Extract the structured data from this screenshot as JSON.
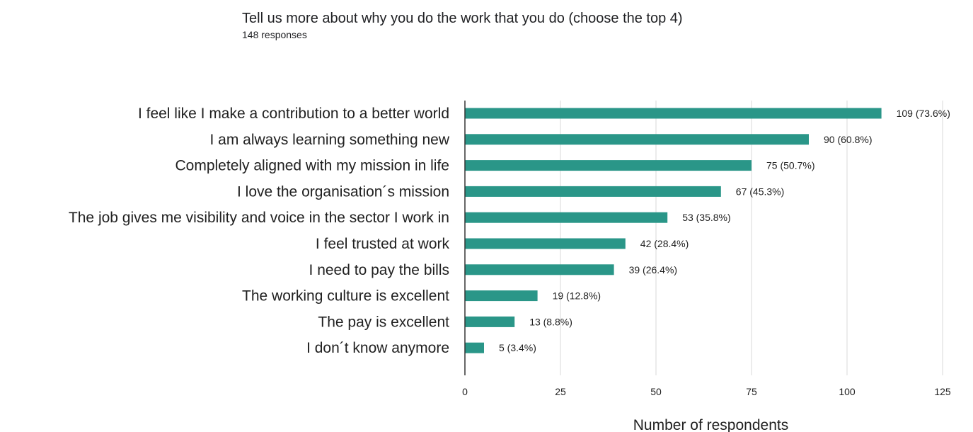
{
  "header": {
    "title": "Tell us more about why you do the work that you do (choose the top 4)",
    "responses": "148 responses"
  },
  "colors": {
    "bar": "#2a9688",
    "grid": "#d9d9d9",
    "axis": "#333333"
  },
  "chart_data": {
    "type": "bar",
    "orientation": "horizontal",
    "categories": [
      "I feel like I make a contribution to a better world",
      "I am always learning something new",
      "Completely aligned with my mission in life",
      "I love the organisation´s mission",
      "The job gives me visibility and voice in the sector I work in",
      "I feel trusted at work",
      "I need to pay the bills",
      "The working culture is excellent",
      "The pay is excellent",
      "I don´t know anymore"
    ],
    "values": [
      109,
      90,
      75,
      67,
      53,
      42,
      39,
      19,
      13,
      5
    ],
    "data_labels": [
      "109 (73.6%)",
      "90 (60.8%)",
      "75 (50.7%)",
      "67 (45.3%)",
      "53 (35.8%)",
      "42 (28.4%)",
      "39 (26.4%)",
      "19 (12.8%)",
      "13 (8.8%)",
      "5 (3.4%)"
    ],
    "xlabel": "Number of respondents",
    "ylabel": "",
    "xlim": [
      0,
      125
    ],
    "xticks": [
      0,
      25,
      50,
      75,
      100,
      125
    ],
    "grid": true,
    "legend": "none"
  }
}
